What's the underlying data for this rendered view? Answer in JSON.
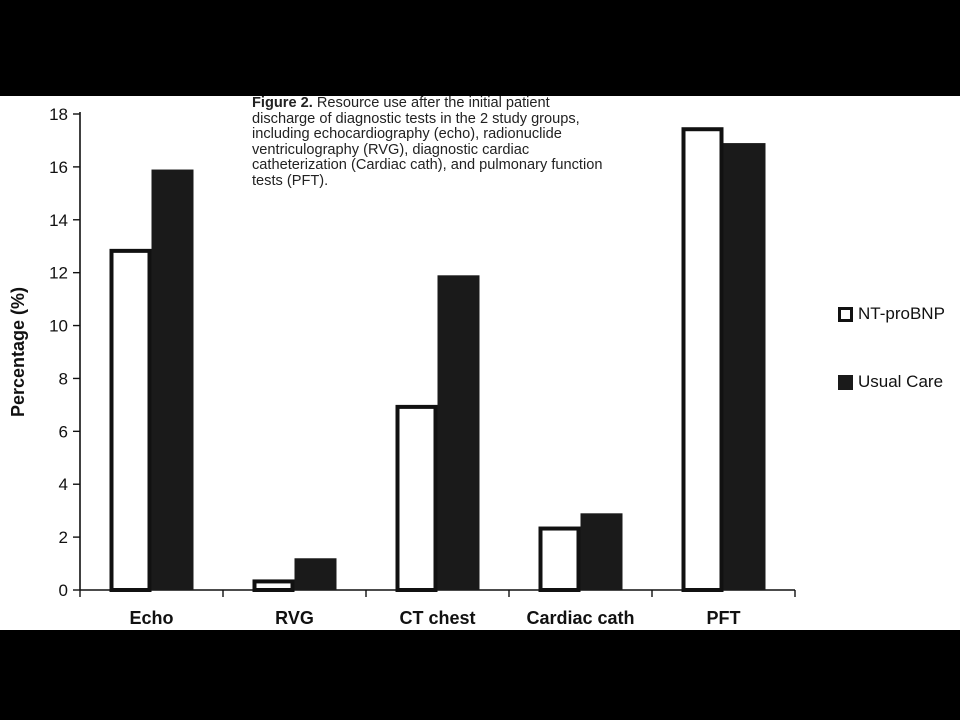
{
  "caption": {
    "label": "Figure 2.",
    "text": " Resource use after the initial patient discharge of diagnostic tests in the 2 study groups, including echocardiography (echo), radionuclide ventriculography (RVG), diagnostic cardiac catheterization (Cardiac cath), and pulmonary function tests (PFT)."
  },
  "chart_data": {
    "type": "bar",
    "title": "",
    "xlabel": "",
    "ylabel": "Percentage (%)",
    "ylim": [
      0,
      18
    ],
    "yticks": [
      "0",
      "2",
      "4",
      "6",
      "8",
      "10",
      "12",
      "14",
      "16",
      "18"
    ],
    "categories": [
      "Echo",
      "RVG",
      "CT chest",
      "Cardiac cath",
      "PFT"
    ],
    "series": [
      {
        "name": "NT-proBNP",
        "values": [
          12.9,
          0.4,
          7.0,
          2.4,
          17.5
        ],
        "style": "outline",
        "color": "#111111"
      },
      {
        "name": "Usual Care",
        "values": [
          15.9,
          1.2,
          11.9,
          2.9,
          16.9
        ],
        "style": "filled",
        "color": "#1a1a1a"
      }
    ],
    "grid": false,
    "legend_position": "right"
  }
}
